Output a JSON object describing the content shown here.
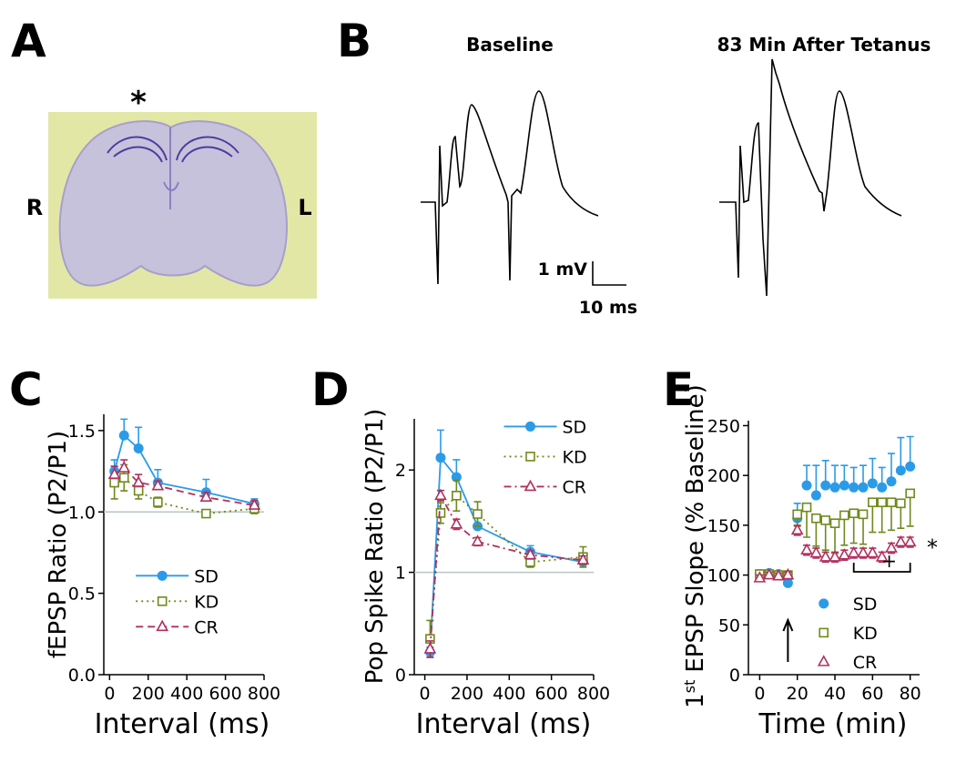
{
  "panel_a": {
    "label": "A",
    "star": "*",
    "left": "R",
    "right": "L"
  },
  "panel_b": {
    "label": "B",
    "baseline_title": "Baseline",
    "tetanus_title": "83 Min After Tetanus",
    "scale_v": "1 mV",
    "scale_t": "10 ms"
  },
  "chart_data": [
    {
      "type": "line",
      "panel_label": "C",
      "ylabel": "fEPSP Ratio (P2/P1)",
      "xlabel": "Interval (ms)",
      "x": [
        25,
        75,
        150,
        250,
        500,
        750
      ],
      "xlim": [
        -30,
        800
      ],
      "xticks": [
        0,
        200,
        400,
        600,
        800
      ],
      "ylim": [
        0,
        1.6
      ],
      "yticks": [
        {
          "value": 0,
          "label": "0.0"
        },
        0.5,
        {
          "value": 1,
          "label": "1.0"
        },
        1.5
      ],
      "reference_line": 1,
      "legend_loc": "center left",
      "series": [
        {
          "name": "SD",
          "color": "#2b9be8",
          "marker": "circle",
          "line_style": "solid",
          "error_side": "up",
          "values": [
            1.25,
            1.47,
            1.39,
            1.18,
            1.12,
            1.05
          ],
          "errors": [
            0.07,
            0.1,
            0.13,
            0.08,
            0.08,
            0.03
          ]
        },
        {
          "name": "KD",
          "color": "#6f8a1c",
          "marker": "square",
          "line_style": "dotted",
          "error_side": "both",
          "values": [
            1.18,
            1.21,
            1.13,
            1.06,
            0.99,
            1.02
          ],
          "errors": [
            0.1,
            0.08,
            0.05,
            0.03,
            0.02,
            0.03
          ]
        },
        {
          "name": "CR",
          "color": "#b0305e",
          "marker": "triangle",
          "line_style": "dashed",
          "error_side": "up",
          "values": [
            1.23,
            1.27,
            1.18,
            1.16,
            1.09,
            1.04
          ],
          "errors": [
            0.05,
            0.05,
            0.05,
            0.03,
            0.03,
            0.03
          ]
        }
      ]
    },
    {
      "type": "line",
      "panel_label": "D",
      "ylabel": "Pop Spike Ratio (P2/P1)",
      "xlabel": "Interval (ms)",
      "x": [
        25,
        75,
        150,
        250,
        500,
        750
      ],
      "xlim": [
        -50,
        800
      ],
      "xticks": [
        0,
        200,
        400,
        600,
        800
      ],
      "ylim": [
        0,
        2.5
      ],
      "yticks": [
        0,
        1,
        2
      ],
      "reference_line": 1,
      "legend_loc": "upper right",
      "series": [
        {
          "name": "SD",
          "color": "#2b9be8",
          "marker": "circle",
          "line_style": "solid",
          "error_side": "up",
          "values": [
            0.22,
            2.12,
            1.93,
            1.45,
            1.2,
            1.1
          ],
          "errors": [
            0.05,
            0.27,
            0.17,
            0.1,
            0.06,
            0.03
          ]
        },
        {
          "name": "KD",
          "color": "#6f8a1c",
          "marker": "square",
          "line_style": "dotted",
          "error_side": "both",
          "values": [
            0.35,
            1.58,
            1.75,
            1.57,
            1.1,
            1.15
          ],
          "errors": [
            0.18,
            0.1,
            0.15,
            0.12,
            0.05,
            0.1
          ]
        },
        {
          "name": "CR",
          "color": "#b0305e",
          "marker": "triangle",
          "line_style": "dashdot",
          "error_side": "both",
          "values": [
            0.25,
            1.75,
            1.47,
            1.3,
            1.17,
            1.12
          ],
          "errors": [
            0.08,
            0.05,
            0.05,
            0.04,
            0.04,
            0.04
          ]
        }
      ]
    },
    {
      "type": "scatter",
      "panel_label": "E",
      "ylabel_parts": [
        "1",
        "st",
        "EPSP Slope (% Baseline)"
      ],
      "xlabel": "Time (min)",
      "x": [
        0,
        5,
        10,
        15,
        20,
        25,
        30,
        35,
        40,
        45,
        50,
        55,
        60,
        65,
        70,
        75,
        80
      ],
      "xlim": [
        -6,
        85
      ],
      "xticks": [
        0,
        20,
        40,
        60,
        80
      ],
      "ylim": [
        0,
        255
      ],
      "yticks": [
        0,
        50,
        100,
        150,
        200,
        250
      ],
      "legend_loc": "lower right",
      "annotations": {
        "arrow_x": 15,
        "bracket_x": [
          50,
          80
        ],
        "bracket_label": "+",
        "star_label": "*"
      },
      "series": [
        {
          "name": "SD",
          "color": "#2b9be8",
          "marker": "circle",
          "line_style": "none",
          "error_side": "up",
          "values": [
            101,
            102,
            101,
            92,
            157,
            190,
            180,
            190,
            188,
            190,
            188,
            188,
            192,
            188,
            194,
            205,
            209
          ],
          "errors": [
            3,
            3,
            3,
            3,
            15,
            20,
            30,
            25,
            22,
            20,
            20,
            22,
            25,
            20,
            28,
            33,
            30
          ]
        },
        {
          "name": "KD",
          "color": "#6f8a1c",
          "marker": "square",
          "line_style": "none",
          "error_side": "down",
          "values": [
            101,
            101,
            100,
            100,
            161,
            168,
            157,
            155,
            152,
            160,
            162,
            161,
            173,
            173,
            173,
            172,
            182
          ],
          "errors": [
            3,
            3,
            3,
            3,
            12,
            30,
            28,
            30,
            30,
            30,
            30,
            30,
            30,
            30,
            28,
            25,
            33
          ]
        },
        {
          "name": "CR",
          "color": "#b0305e",
          "marker": "triangle",
          "line_style": "none",
          "error_side": "both",
          "values": [
            97,
            100,
            99,
            100,
            145,
            125,
            122,
            118,
            118,
            120,
            122,
            122,
            122,
            118,
            127,
            133,
            133
          ],
          "errors": [
            3,
            3,
            3,
            3,
            5,
            5,
            5,
            5,
            5,
            5,
            5,
            5,
            5,
            5,
            5,
            5,
            5
          ]
        }
      ]
    }
  ]
}
